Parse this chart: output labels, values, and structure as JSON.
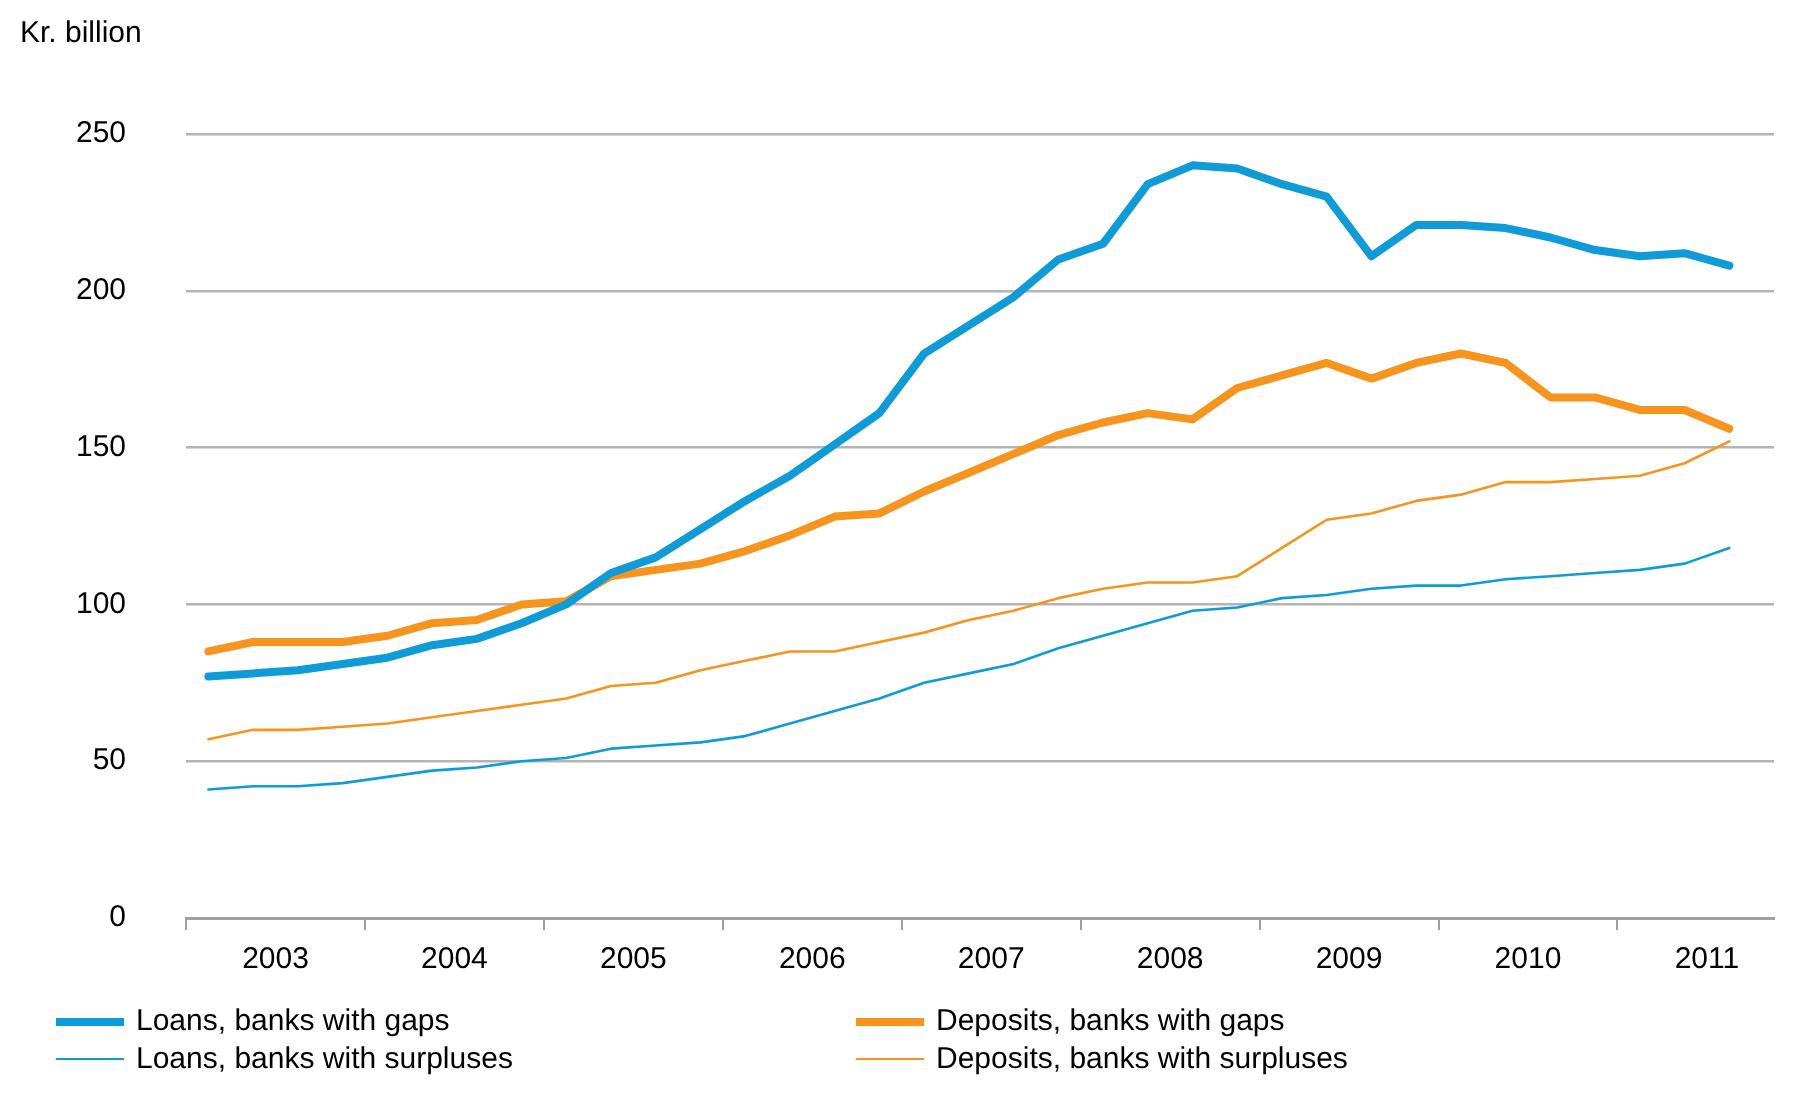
{
  "chart_data": {
    "type": "line",
    "ylabel": "Kr. billion",
    "x": [
      2003.125,
      2003.375,
      2003.625,
      2003.875,
      2004.125,
      2004.375,
      2004.625,
      2004.875,
      2005.125,
      2005.375,
      2005.625,
      2005.875,
      2006.125,
      2006.375,
      2006.625,
      2006.875,
      2007.125,
      2007.375,
      2007.625,
      2007.875,
      2008.125,
      2008.375,
      2008.625,
      2008.875,
      2009.125,
      2009.375,
      2009.625,
      2009.875,
      2010.125,
      2010.375,
      2010.625,
      2010.875,
      2011.125,
      2011.375,
      2011.625
    ],
    "series": [
      {
        "name": "Loans, banks with gaps",
        "color": "#0f9bd7",
        "values": [
          77,
          78,
          79,
          81,
          83,
          87,
          89,
          94,
          100,
          110,
          115,
          124,
          133,
          141,
          151,
          161,
          180,
          189,
          198,
          210,
          215,
          234,
          240,
          239,
          234,
          230,
          211,
          221,
          221,
          220,
          217,
          213,
          211,
          212,
          208
        ]
      },
      {
        "name": "Deposits, banks with gaps",
        "color": "#f7941d",
        "values": [
          85,
          88,
          88,
          88,
          90,
          94,
          95,
          100,
          101,
          109,
          111,
          113,
          117,
          122,
          128,
          129,
          136,
          142,
          148,
          154,
          158,
          161,
          159,
          169,
          173,
          177,
          172,
          177,
          180,
          177,
          166,
          166,
          162,
          162,
          156
        ]
      },
      {
        "name": "Loans, banks with surpluses",
        "color": "#0f9bd7",
        "values": [
          41,
          42,
          42,
          43,
          45,
          47,
          48,
          50,
          51,
          54,
          55,
          56,
          58,
          62,
          66,
          70,
          75,
          78,
          81,
          86,
          90,
          94,
          98,
          99,
          102,
          103,
          105,
          106,
          106,
          108,
          109,
          110,
          111,
          113,
          118
        ]
      },
      {
        "name": "Deposits, banks with surpluses",
        "color": "#f7941d",
        "values": [
          57,
          60,
          60,
          61,
          62,
          64,
          66,
          68,
          70,
          74,
          75,
          79,
          82,
          85,
          85,
          88,
          91,
          95,
          98,
          102,
          105,
          107,
          107,
          109,
          118,
          127,
          129,
          133,
          135,
          139,
          139,
          140,
          141,
          145,
          152
        ]
      }
    ],
    "xlim": [
      2003,
      2011.875
    ],
    "xticks": [
      {
        "value": 2003,
        "label": null
      },
      {
        "value": 2003.5,
        "label": "2003"
      },
      {
        "value": 2004,
        "label": null
      },
      {
        "value": 2004.5,
        "label": "2004"
      },
      {
        "value": 2005,
        "label": null
      },
      {
        "value": 2005.5,
        "label": "2005"
      },
      {
        "value": 2006,
        "label": null
      },
      {
        "value": 2006.5,
        "label": "2006"
      },
      {
        "value": 2007,
        "label": null
      },
      {
        "value": 2007.5,
        "label": "2007"
      },
      {
        "value": 2008,
        "label": null
      },
      {
        "value": 2008.5,
        "label": "2008"
      },
      {
        "value": 2009,
        "label": null
      },
      {
        "value": 2009.5,
        "label": "2009"
      },
      {
        "value": 2010,
        "label": null
      },
      {
        "value": 2010.5,
        "label": "2010"
      },
      {
        "value": 2011,
        "label": null
      },
      {
        "value": 2011.5,
        "label": "2011"
      }
    ],
    "ylim": [
      0,
      250
    ],
    "yticks": [
      0,
      50,
      100,
      150,
      200,
      250
    ],
    "grid": "y",
    "legend": "bottom",
    "marker": "none",
    "line_style": "solid"
  }
}
